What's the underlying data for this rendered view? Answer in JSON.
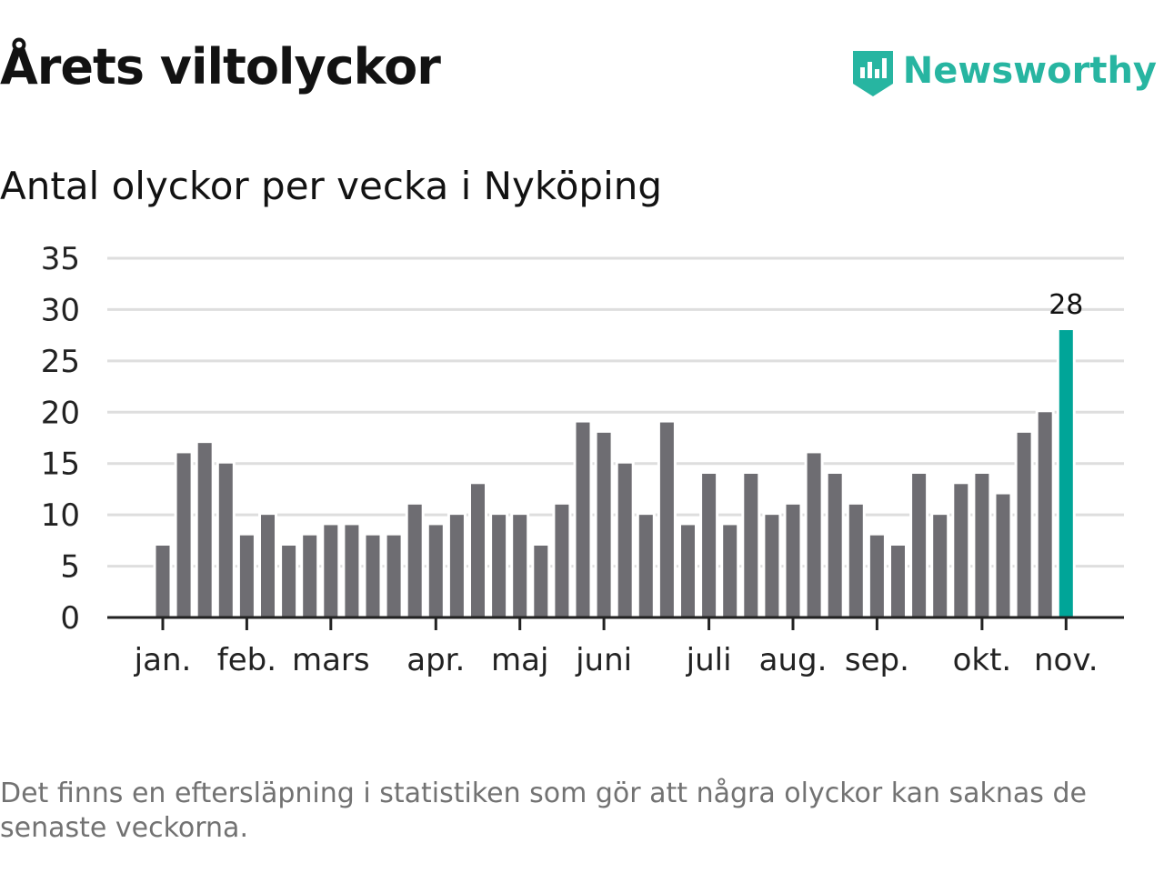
{
  "title": "Årets viltolyckor",
  "subtitle": "Antal olyckor per vecka i Nyköping",
  "note": "Det finns en eftersläpning i statistiken som gör att några olyckor kan saknas de senaste veckorna.",
  "logo": "Newsworthy",
  "colors": {
    "bar": "#6e6d72",
    "highlight": "#00a598",
    "grid": "#dedede",
    "axis": "#222222"
  },
  "chart_data": {
    "type": "bar",
    "title": "Antal olyckor per vecka i Nyköping",
    "xlabel": "",
    "ylabel": "",
    "ylim": [
      0,
      35
    ],
    "yticks": [
      0,
      5,
      10,
      15,
      20,
      25,
      30,
      35
    ],
    "grid": true,
    "values": [
      7,
      16,
      17,
      15,
      8,
      10,
      7,
      8,
      9,
      9,
      8,
      8,
      11,
      9,
      10,
      13,
      10,
      10,
      7,
      11,
      19,
      18,
      15,
      10,
      19,
      9,
      14,
      9,
      14,
      10,
      11,
      16,
      14,
      11,
      8,
      7,
      14,
      10,
      13,
      14,
      12,
      18,
      20,
      28
    ],
    "highlight_index": 43,
    "highlight_label": "28",
    "month_labels": [
      {
        "label": "jan.",
        "week_index": 0
      },
      {
        "label": "feb.",
        "week_index": 4
      },
      {
        "label": "mars",
        "week_index": 8
      },
      {
        "label": "apr.",
        "week_index": 13
      },
      {
        "label": "maj",
        "week_index": 17
      },
      {
        "label": "juni",
        "week_index": 21
      },
      {
        "label": "juli",
        "week_index": 26
      },
      {
        "label": "aug.",
        "week_index": 30
      },
      {
        "label": "sep.",
        "week_index": 34
      },
      {
        "label": "okt.",
        "week_index": 39
      },
      {
        "label": "nov.",
        "week_index": 43
      }
    ]
  }
}
